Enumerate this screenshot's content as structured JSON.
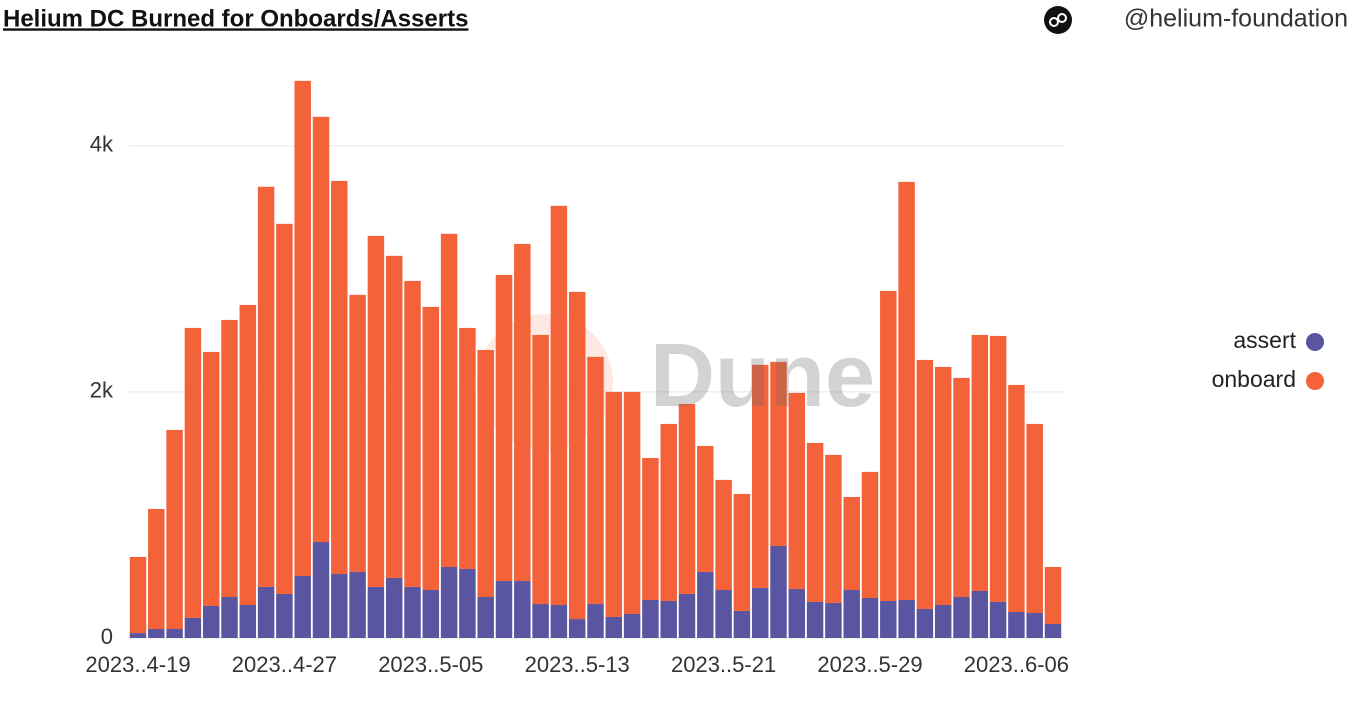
{
  "chart_data": {
    "type": "stacked_bar",
    "title": "Helium DC Burned for Onboards/Asserts",
    "author": "@helium-foundation",
    "watermark": "Dune",
    "categories": [
      "2023..4-19",
      null,
      null,
      null,
      null,
      null,
      null,
      null,
      "2023..4-27",
      null,
      null,
      null,
      null,
      null,
      null,
      null,
      "2023..5-05",
      null,
      null,
      null,
      null,
      null,
      null,
      null,
      "2023..5-13",
      null,
      null,
      null,
      null,
      null,
      null,
      null,
      "2023..5-21",
      null,
      null,
      null,
      null,
      null,
      null,
      null,
      "2023..5-29",
      null,
      null,
      null,
      null,
      null,
      null,
      null,
      "2023..6-06",
      null,
      null
    ],
    "series": [
      {
        "name": "assert",
        "color": "#5a55a0",
        "values": [
          40,
          73,
          73,
          163,
          260,
          333,
          268,
          415,
          358,
          504,
          780,
          520,
          537,
          415,
          488,
          415,
          390,
          577,
          561,
          333,
          463,
          463,
          276,
          268,
          154,
          276,
          171,
          195,
          309,
          301,
          358,
          537,
          390,
          220,
          407,
          748,
          398,
          293,
          285,
          390,
          325,
          301,
          309,
          236,
          268,
          333,
          382,
          293,
          211,
          203,
          114
        ]
      },
      {
        "name": "onboard",
        "color": "#f4623a",
        "values": [
          619,
          976,
          1618,
          2357,
          2065,
          2252,
          2439,
          3252,
          3008,
          4024,
          3456,
          3195,
          2252,
          2853,
          2618,
          2487,
          2301,
          2708,
          1959,
          2008,
          2488,
          2740,
          2187,
          3244,
          2659,
          2009,
          1829,
          1805,
          1154,
          1439,
          1544,
          1024,
          895,
          951,
          1813,
          1496,
          1594,
          1292,
          1203,
          756,
          1025,
          2520,
          3398,
          2024,
          1935,
          1781,
          2081,
          2162,
          1846,
          1537,
          463
        ]
      }
    ],
    "ylim": [
      0,
      4600
    ],
    "yticks": [
      0,
      {
        "value": 2000,
        "label": "2k"
      },
      {
        "value": 4000,
        "label": "4k"
      }
    ],
    "grid": true,
    "legend": "right"
  }
}
